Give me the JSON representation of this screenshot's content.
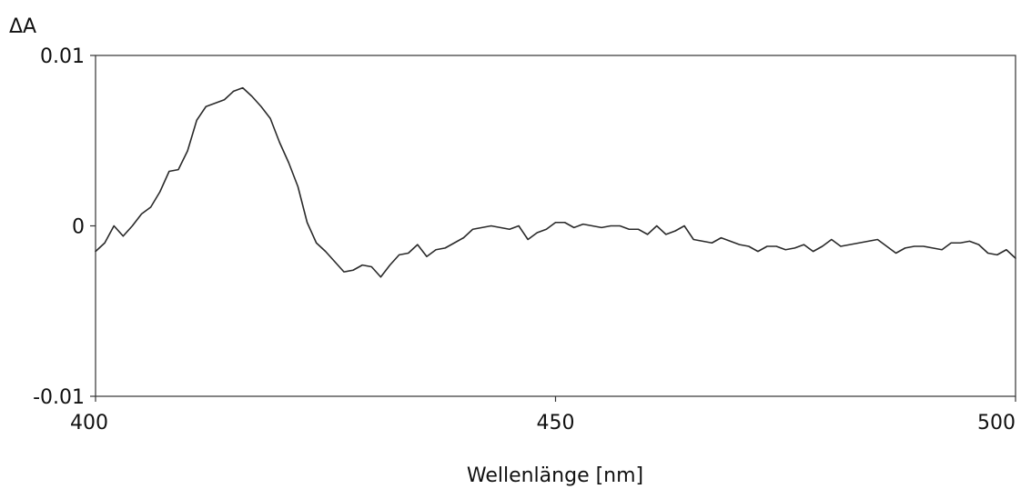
{
  "chart_data": {
    "type": "line",
    "title": "",
    "xlabel": "Wellenlänge [nm]",
    "ylabel": "ΔA",
    "xlim": [
      400,
      500
    ],
    "ylim": [
      -0.01,
      0.01
    ],
    "x_ticks": [
      400,
      450,
      500
    ],
    "x_tick_labels": [
      "400",
      "450",
      "500"
    ],
    "y_ticks": [
      0.01,
      0,
      -0.01
    ],
    "y_tick_labels": [
      "0.01",
      "0",
      "-0.01"
    ],
    "grid": false,
    "legend": "none",
    "colors": {
      "line": "#2a2a2a",
      "frame": "#333333",
      "background": "#ffffff"
    },
    "series": [
      {
        "x": [
          400,
          401,
          402,
          403,
          404,
          405,
          406,
          407,
          408,
          409,
          410,
          411,
          412,
          413,
          414,
          415,
          416,
          417,
          418,
          419,
          420,
          421,
          422,
          423,
          424,
          425,
          426,
          427,
          428,
          429,
          430,
          431,
          432,
          433,
          434,
          435,
          436,
          437,
          438,
          439,
          440,
          441,
          442,
          443,
          444,
          445,
          446,
          447,
          448,
          449,
          450,
          451,
          452,
          453,
          454,
          455,
          456,
          457,
          458,
          459,
          460,
          461,
          462,
          463,
          464,
          465,
          466,
          467,
          468,
          469,
          470,
          471,
          472,
          473,
          474,
          475,
          476,
          477,
          478,
          479,
          480,
          481,
          482,
          483,
          484,
          485,
          486,
          487,
          488,
          489,
          490,
          491,
          492,
          493,
          494,
          495,
          496,
          497,
          498,
          499,
          500
        ],
        "y": [
          -0.0015,
          -0.001,
          0.0,
          -0.0006,
          0.0,
          0.0007,
          0.0011,
          0.002,
          0.0032,
          0.0033,
          0.0044,
          0.0062,
          0.007,
          0.0072,
          0.0074,
          0.0079,
          0.0081,
          0.0076,
          0.007,
          0.0063,
          0.0049,
          0.0037,
          0.0023,
          0.0002,
          -0.001,
          -0.0015,
          -0.0021,
          -0.0027,
          -0.0026,
          -0.0023,
          -0.0024,
          -0.003,
          -0.0023,
          -0.0017,
          -0.0016,
          -0.0011,
          -0.0018,
          -0.0014,
          -0.0013,
          -0.001,
          -0.0007,
          -0.0002,
          -0.0001,
          0.0,
          -0.0001,
          -0.0002,
          0.0,
          -0.0008,
          -0.0004,
          -0.0002,
          0.0002,
          0.0002,
          -0.0001,
          0.0001,
          0.0,
          -0.0001,
          0.0,
          0.0,
          -0.0002,
          -0.0002,
          -0.0005,
          0.0,
          -0.0005,
          -0.0003,
          0.0,
          -0.0008,
          -0.0009,
          -0.001,
          -0.0007,
          -0.0009,
          -0.0011,
          -0.0012,
          -0.0015,
          -0.0012,
          -0.0012,
          -0.0014,
          -0.0013,
          -0.0011,
          -0.0015,
          -0.0012,
          -0.0008,
          -0.0012,
          -0.0011,
          -0.001,
          -0.0009,
          -0.0008,
          -0.0012,
          -0.0016,
          -0.0013,
          -0.0012,
          -0.0012,
          -0.0013,
          -0.0014,
          -0.001,
          -0.001,
          -0.0009,
          -0.0011,
          -0.0016,
          -0.0017,
          -0.0014,
          -0.0019
        ]
      }
    ]
  }
}
